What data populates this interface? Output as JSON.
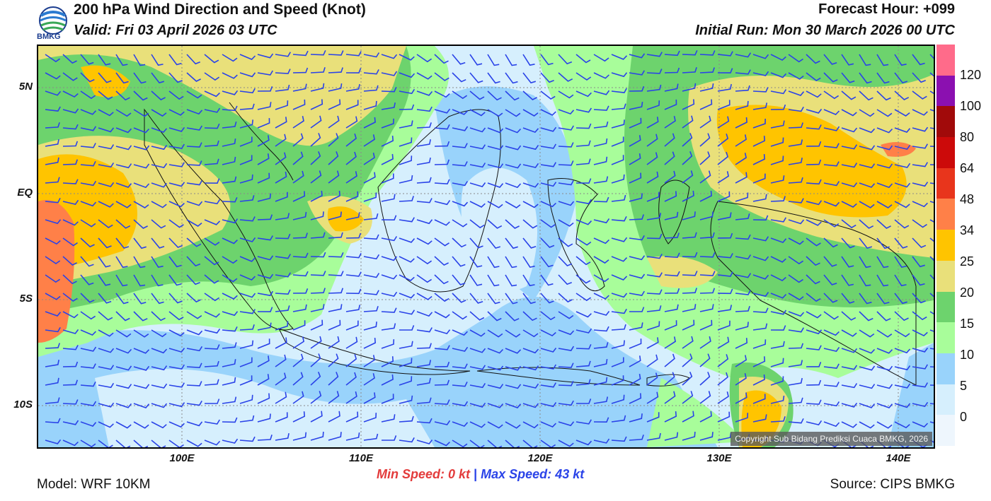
{
  "header": {
    "title": "200 hPa Wind Direction and Speed (Knot)",
    "valid": "Valid: Fri 03 April 2026 03 UTC",
    "forecast_hour": "Forecast Hour: +099",
    "initial_run": "Initial Run: Mon 30 March 2026 00 UTC"
  },
  "logo": {
    "text": "BMKG"
  },
  "map": {
    "lat_labels": [
      "5N",
      "EQ",
      "5S",
      "10S"
    ],
    "lon_labels": [
      "100E",
      "110E",
      "120E",
      "130E",
      "140E"
    ],
    "copyright": "Copyright Sub Bidang Prediksi Cuaca BMKG, 2026"
  },
  "colorbar": {
    "labels": [
      "120",
      "100",
      "80",
      "64",
      "48",
      "34",
      "25",
      "20",
      "15",
      "10",
      "5",
      "0"
    ],
    "colors": [
      "#ff6b8a",
      "#8b10b0",
      "#a10a0a",
      "#cc0a0a",
      "#e8351c",
      "#ff8048",
      "#ffc400",
      "#e9e07a",
      "#6dd36d",
      "#a8fd9a",
      "#99d3fb",
      "#d6effd",
      "#eef6fd"
    ]
  },
  "footer": {
    "min_label": "Min Speed:",
    "min_value": "0 kt",
    "separator": "|",
    "max_label": "Max Speed:",
    "max_value": "43 kt",
    "model": "Model: WRF 10KM",
    "source": "Source: CIPS BMKG"
  }
}
